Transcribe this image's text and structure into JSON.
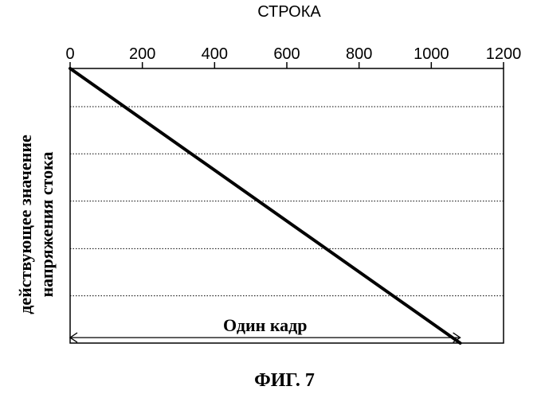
{
  "chart_data": {
    "type": "line",
    "xlabel": "СТРОКА",
    "ylabel": [
      "действующее значение",
      "напряжения стока"
    ],
    "x_ticks": [
      0,
      200,
      400,
      600,
      800,
      1000,
      1200
    ],
    "xlim": [
      0,
      1200
    ],
    "ylim": [
      0,
      1
    ],
    "y_gridlines": [
      0.172,
      0.344,
      0.517,
      0.689,
      0.861
    ],
    "grid": "horizontal-dotted",
    "series": [
      {
        "x": [
          0,
          1080
        ],
        "y": [
          1,
          0
        ]
      }
    ],
    "annotation": {
      "label": "Один кадр",
      "from_x": 0,
      "to_x": 1080,
      "y": 0.02
    }
  },
  "caption": "ФИГ. 7"
}
